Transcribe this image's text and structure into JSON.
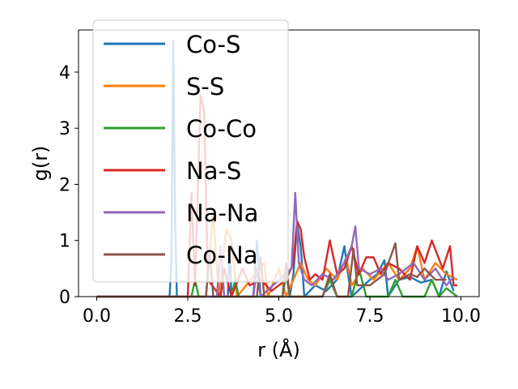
{
  "chart_data": {
    "type": "line",
    "xlabel": "r (Å)",
    "ylabel": "g(r)",
    "xlim": [
      -0.5,
      10.5
    ],
    "ylim": [
      0,
      4.75
    ],
    "xticks": [
      0.0,
      2.5,
      5.0,
      7.5,
      10.0
    ],
    "xtick_labels": [
      "0.0",
      "2.5",
      "5.0",
      "7.5",
      "10.0"
    ],
    "yticks": [
      0,
      1,
      2,
      3,
      4
    ],
    "ytick_labels": [
      "0",
      "1",
      "2",
      "3",
      "4"
    ],
    "grid": false,
    "legend_position": "upper-left",
    "series": [
      {
        "name": "Co-S",
        "color": "#1f77b4",
        "points": [
          [
            0.0,
            0
          ],
          [
            2.0,
            0
          ],
          [
            2.05,
            0.6
          ],
          [
            2.1,
            4.55
          ],
          [
            2.15,
            1.5
          ],
          [
            2.2,
            0
          ],
          [
            3.6,
            0
          ],
          [
            3.65,
            0.9
          ],
          [
            3.7,
            0
          ],
          [
            4.3,
            0
          ],
          [
            4.4,
            1.0
          ],
          [
            4.5,
            0
          ],
          [
            5.3,
            0
          ],
          [
            5.4,
            0.4
          ],
          [
            5.5,
            1.3
          ],
          [
            5.6,
            0.9
          ],
          [
            5.7,
            0
          ],
          [
            6.0,
            0.2
          ],
          [
            6.3,
            0.1
          ],
          [
            6.6,
            0.3
          ],
          [
            6.8,
            0.9
          ],
          [
            6.9,
            0.4
          ],
          [
            7.0,
            0
          ],
          [
            7.5,
            0.3
          ],
          [
            7.7,
            0.4
          ],
          [
            7.9,
            0.65
          ],
          [
            8.0,
            0
          ],
          [
            8.3,
            0.3
          ],
          [
            8.6,
            0.35
          ],
          [
            8.9,
            0.25
          ],
          [
            9.2,
            0.3
          ],
          [
            9.4,
            0
          ],
          [
            9.6,
            0.45
          ],
          [
            9.8,
            0.1
          ]
        ]
      },
      {
        "name": "S-S",
        "color": "#ff7f0e",
        "points": [
          [
            0.0,
            0
          ],
          [
            3.0,
            0
          ],
          [
            3.2,
            1.5
          ],
          [
            3.35,
            0
          ],
          [
            3.55,
            1.2
          ],
          [
            3.7,
            1.0
          ],
          [
            3.85,
            0
          ],
          [
            4.6,
            0.6
          ],
          [
            4.7,
            0
          ],
          [
            5.0,
            0.5
          ],
          [
            5.2,
            0
          ],
          [
            5.6,
            0.6
          ],
          [
            5.8,
            0.3
          ],
          [
            6.0,
            0.2
          ],
          [
            6.3,
            0.5
          ],
          [
            6.6,
            0.3
          ],
          [
            6.85,
            0.7
          ],
          [
            7.0,
            0.2
          ],
          [
            7.3,
            0.5
          ],
          [
            7.6,
            0.3
          ],
          [
            8.0,
            0.6
          ],
          [
            8.3,
            0.3
          ],
          [
            8.6,
            0.5
          ],
          [
            8.8,
            0.9
          ],
          [
            9.0,
            0.3
          ],
          [
            9.3,
            0.6
          ],
          [
            9.6,
            0.4
          ],
          [
            9.9,
            0.3
          ]
        ]
      },
      {
        "name": "Co-Co",
        "color": "#2ca02c",
        "points": [
          [
            0.0,
            0
          ],
          [
            2.6,
            0
          ],
          [
            2.7,
            0.3
          ],
          [
            2.8,
            0
          ],
          [
            3.7,
            0
          ],
          [
            3.8,
            0.3
          ],
          [
            3.9,
            0
          ],
          [
            5.1,
            0
          ],
          [
            5.2,
            0.4
          ],
          [
            5.3,
            0
          ],
          [
            6.2,
            0
          ],
          [
            6.4,
            0.3
          ],
          [
            6.6,
            0
          ],
          [
            7.0,
            0
          ],
          [
            7.2,
            0.5
          ],
          [
            7.4,
            0
          ],
          [
            8.0,
            0
          ],
          [
            8.2,
            0.3
          ],
          [
            8.4,
            0
          ],
          [
            9.0,
            0
          ],
          [
            9.2,
            0.3
          ],
          [
            9.4,
            0
          ],
          [
            9.6,
            0.15
          ],
          [
            9.9,
            0
          ]
        ]
      },
      {
        "name": "Na-S",
        "color": "#d62728",
        "points": [
          [
            0.0,
            0
          ],
          [
            2.5,
            0
          ],
          [
            2.6,
            1.85
          ],
          [
            2.7,
            0.2
          ],
          [
            2.85,
            3.6
          ],
          [
            2.95,
            3.3
          ],
          [
            3.05,
            0.3
          ],
          [
            3.4,
            0
          ],
          [
            3.5,
            0.5
          ],
          [
            3.7,
            0
          ],
          [
            4.0,
            0.5
          ],
          [
            4.2,
            0.2
          ],
          [
            4.5,
            0.3
          ],
          [
            4.8,
            0.1
          ],
          [
            5.0,
            0.2
          ],
          [
            5.2,
            0.3
          ],
          [
            5.4,
            0.6
          ],
          [
            5.5,
            1.35
          ],
          [
            5.6,
            1.2
          ],
          [
            5.7,
            0.7
          ],
          [
            5.85,
            0.3
          ],
          [
            6.0,
            0.4
          ],
          [
            6.2,
            0.3
          ],
          [
            6.4,
            1.0
          ],
          [
            6.6,
            0.4
          ],
          [
            6.8,
            0.5
          ],
          [
            7.0,
            0.9
          ],
          [
            7.2,
            0.4
          ],
          [
            7.4,
            0.7
          ],
          [
            7.6,
            0.7
          ],
          [
            7.8,
            0.4
          ],
          [
            8.0,
            0.6
          ],
          [
            8.3,
            0.5
          ],
          [
            8.6,
            0.3
          ],
          [
            8.8,
            0.9
          ],
          [
            9.0,
            0.6
          ],
          [
            9.2,
            1.0
          ],
          [
            9.5,
            0.5
          ],
          [
            9.7,
            0.9
          ],
          [
            9.8,
            0.2
          ],
          [
            9.9,
            0.2
          ]
        ]
      },
      {
        "name": "Na-Na",
        "color": "#9467bd",
        "points": [
          [
            0.0,
            0
          ],
          [
            3.3,
            0
          ],
          [
            3.4,
            0.9
          ],
          [
            3.5,
            0
          ],
          [
            4.3,
            0
          ],
          [
            4.4,
            0.5
          ],
          [
            4.5,
            0
          ],
          [
            5.35,
            0.5
          ],
          [
            5.45,
            1.85
          ],
          [
            5.55,
            0.6
          ],
          [
            5.7,
            0.3
          ],
          [
            5.9,
            0.2
          ],
          [
            6.2,
            0.4
          ],
          [
            6.5,
            0.3
          ],
          [
            6.8,
            0.6
          ],
          [
            7.0,
            0.9
          ],
          [
            7.1,
            1.25
          ],
          [
            7.2,
            0.5
          ],
          [
            7.5,
            0.4
          ],
          [
            7.8,
            0.5
          ],
          [
            8.0,
            0.3
          ],
          [
            8.3,
            0.4
          ],
          [
            8.5,
            0.5
          ],
          [
            8.7,
            0.6
          ],
          [
            9.0,
            0.3
          ],
          [
            9.3,
            0.5
          ],
          [
            9.6,
            0.2
          ],
          [
            9.8,
            0.35
          ]
        ]
      },
      {
        "name": "Co-Na",
        "color": "#8c564b",
        "points": [
          [
            0.0,
            0
          ],
          [
            3.0,
            0
          ],
          [
            3.1,
            0.8
          ],
          [
            3.2,
            0
          ],
          [
            4.4,
            0
          ],
          [
            4.5,
            0.7
          ],
          [
            4.6,
            0
          ],
          [
            5.1,
            0
          ],
          [
            5.2,
            0.6
          ],
          [
            5.3,
            0
          ],
          [
            6.2,
            0
          ],
          [
            6.4,
            0.4
          ],
          [
            6.6,
            0
          ],
          [
            6.9,
            0
          ],
          [
            7.05,
            0.85
          ],
          [
            7.15,
            0.2
          ],
          [
            7.5,
            0.2
          ],
          [
            7.9,
            0.4
          ],
          [
            8.2,
            0.95
          ],
          [
            8.3,
            0.3
          ],
          [
            8.6,
            0.4
          ],
          [
            8.8,
            0.35
          ],
          [
            9.0,
            0.5
          ],
          [
            9.3,
            0.3
          ],
          [
            9.6,
            0.3
          ]
        ]
      }
    ]
  }
}
